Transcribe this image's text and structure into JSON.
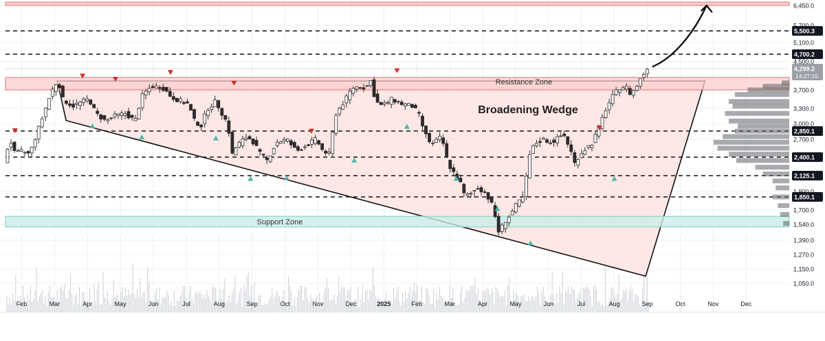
{
  "chart_data": {
    "type": "candlestick",
    "y_axis": {
      "ticks": [
        {
          "v": 6450,
          "label": "6,450.0"
        },
        {
          "v": 5700,
          "label": "5,700.0"
        },
        {
          "v": 5100,
          "label": "5,100.0"
        },
        {
          "v": 4500,
          "label": "4,500.0"
        },
        {
          "v": 3700,
          "label": "3,700.0"
        },
        {
          "v": 3300,
          "label": "3,300.0"
        },
        {
          "v": 3000,
          "label": "3,000.0"
        },
        {
          "v": 2700,
          "label": "2,700.0"
        },
        {
          "v": 1900,
          "label": "1,900.0"
        },
        {
          "v": 1700,
          "label": "1,700.0"
        },
        {
          "v": 1540,
          "label": "1,540.0"
        },
        {
          "v": 1390,
          "label": "1,390.0"
        },
        {
          "v": 1270,
          "label": "1,270.0"
        },
        {
          "v": 1150,
          "label": "1,150.0"
        },
        {
          "v": 1050,
          "label": "1,050.0"
        }
      ],
      "level_labels": [
        {
          "v": 5500.3,
          "label": "5,500.3"
        },
        {
          "v": 4700.2,
          "label": "4,700.2"
        },
        {
          "v": 2850.1,
          "label": "2,850.1"
        },
        {
          "v": 2400.1,
          "label": "2,400.1"
        },
        {
          "v": 2125.1,
          "label": "2,125.1"
        },
        {
          "v": 1850.1,
          "label": "1,850.1"
        }
      ],
      "current_price": {
        "v": 4299.2,
        "label": "4,299.2",
        "countdown": "14:27:15"
      }
    },
    "x_axis": {
      "ticks": [
        {
          "t": 0.5,
          "label": "Feb",
          "bold": false
        },
        {
          "t": 1.5,
          "label": "Mar",
          "bold": false
        },
        {
          "t": 2.5,
          "label": "Apr",
          "bold": false
        },
        {
          "t": 3.5,
          "label": "May",
          "bold": false
        },
        {
          "t": 4.5,
          "label": "Jun",
          "bold": false
        },
        {
          "t": 5.5,
          "label": "Jul",
          "bold": false
        },
        {
          "t": 6.5,
          "label": "Aug",
          "bold": false
        },
        {
          "t": 7.5,
          "label": "Sep",
          "bold": false
        },
        {
          "t": 8.5,
          "label": "Oct",
          "bold": false
        },
        {
          "t": 9.5,
          "label": "Nov",
          "bold": false
        },
        {
          "t": 10.5,
          "label": "Dec",
          "bold": false
        },
        {
          "t": 11.5,
          "label": "2025",
          "bold": true
        },
        {
          "t": 12.5,
          "label": "Feb",
          "bold": false
        },
        {
          "t": 13.5,
          "label": "Mar",
          "bold": false
        },
        {
          "t": 14.5,
          "label": "Apr",
          "bold": false
        },
        {
          "t": 15.5,
          "label": "May",
          "bold": false
        },
        {
          "t": 16.5,
          "label": "Jun",
          "bold": false
        },
        {
          "t": 17.5,
          "label": "Jul",
          "bold": false
        },
        {
          "t": 18.5,
          "label": "Aug",
          "bold": false
        },
        {
          "t": 19.5,
          "label": "Sep",
          "bold": false
        },
        {
          "t": 20.5,
          "label": "Oct",
          "bold": false
        },
        {
          "t": 21.5,
          "label": "Nov",
          "bold": false
        },
        {
          "t": 22.5,
          "label": "Dec",
          "bold": false
        }
      ]
    },
    "price_path": [
      [
        0,
        2300
      ],
      [
        0.2,
        2700
      ],
      [
        0.35,
        2450
      ],
      [
        0.55,
        2500
      ],
      [
        0.8,
        2450
      ],
      [
        1.0,
        2780
      ],
      [
        1.2,
        3150
      ],
      [
        1.45,
        3650
      ],
      [
        1.65,
        3960
      ],
      [
        1.8,
        3500
      ],
      [
        2.1,
        3350
      ],
      [
        2.4,
        3450
      ],
      [
        2.6,
        3500
      ],
      [
        2.8,
        3200
      ],
      [
        3.1,
        3050
      ],
      [
        3.4,
        3150
      ],
      [
        3.7,
        3200
      ],
      [
        4.0,
        3050
      ],
      [
        4.2,
        3550
      ],
      [
        4.5,
        3800
      ],
      [
        4.8,
        3780
      ],
      [
        5.1,
        3550
      ],
      [
        5.4,
        3450
      ],
      [
        5.6,
        3400
      ],
      [
        5.8,
        3050
      ],
      [
        6.0,
        2950
      ],
      [
        6.2,
        3300
      ],
      [
        6.45,
        3450
      ],
      [
        6.6,
        3250
      ],
      [
        6.8,
        3000
      ],
      [
        6.95,
        2450
      ],
      [
        7.1,
        2600
      ],
      [
        7.4,
        2750
      ],
      [
        7.6,
        2650
      ],
      [
        7.8,
        2450
      ],
      [
        8.0,
        2350
      ],
      [
        8.3,
        2650
      ],
      [
        8.6,
        2700
      ],
      [
        8.9,
        2500
      ],
      [
        9.2,
        2600
      ],
      [
        9.5,
        2700
      ],
      [
        9.7,
        2500
      ],
      [
        9.9,
        2450
      ],
      [
        10.1,
        3200
      ],
      [
        10.4,
        3500
      ],
      [
        10.6,
        3750
      ],
      [
        10.8,
        3800
      ],
      [
        11.0,
        3750
      ],
      [
        11.15,
        3950
      ],
      [
        11.3,
        3450
      ],
      [
        11.5,
        3350
      ],
      [
        11.8,
        3500
      ],
      [
        12.1,
        3400
      ],
      [
        12.4,
        3350
      ],
      [
        12.6,
        3200
      ],
      [
        12.8,
        2800
      ],
      [
        13.0,
        2600
      ],
      [
        13.3,
        2750
      ],
      [
        13.5,
        2300
      ],
      [
        13.7,
        2150
      ],
      [
        13.9,
        2000
      ],
      [
        14.0,
        1850
      ],
      [
        14.2,
        1880
      ],
      [
        14.4,
        1950
      ],
      [
        14.6,
        1900
      ],
      [
        14.8,
        1800
      ],
      [
        14.95,
        1600
      ],
      [
        15.05,
        1450
      ],
      [
        15.2,
        1560
      ],
      [
        15.4,
        1650
      ],
      [
        15.6,
        1770
      ],
      [
        15.8,
        1850
      ],
      [
        16.0,
        2500
      ],
      [
        16.2,
        2650
      ],
      [
        16.4,
        2700
      ],
      [
        16.6,
        2650
      ],
      [
        16.8,
        2700
      ],
      [
        17.0,
        2800
      ],
      [
        17.2,
        2550
      ],
      [
        17.35,
        2300
      ],
      [
        17.5,
        2450
      ],
      [
        17.7,
        2550
      ],
      [
        17.9,
        2650
      ],
      [
        18.1,
        2950
      ],
      [
        18.3,
        3300
      ],
      [
        18.5,
        3550
      ],
      [
        18.7,
        3750
      ],
      [
        18.9,
        3800
      ],
      [
        19.05,
        3600
      ],
      [
        19.2,
        3750
      ],
      [
        19.4,
        4100
      ],
      [
        19.55,
        4300
      ]
    ],
    "resistance_zone": {
      "label": "Resistance Zone",
      "from": 3700,
      "to": 4050
    },
    "support_zone": {
      "label": "Support Zone",
      "from": 1515,
      "to": 1630
    },
    "pattern_label": "Broadening Wedge",
    "wedge_polygon": [
      [
        1.58,
        3970
      ],
      [
        1.58,
        3950
      ],
      [
        21.25,
        3950
      ],
      [
        19.45,
        1100
      ],
      [
        1.85,
        3060
      ]
    ],
    "dashed_levels": [
      5500.3,
      4700.2,
      2850.1,
      2400.1,
      2125.1,
      1850.1
    ],
    "top_band": 6450,
    "dotted_level": 4299.2,
    "projection_arrow": [
      [
        19.65,
        4350
      ],
      [
        20.3,
        4600
      ],
      [
        20.9,
        5400
      ],
      [
        21.3,
        6450
      ]
    ],
    "highs_markers": [
      [
        0.3,
        2850
      ],
      [
        2.35,
        4080
      ],
      [
        3.35,
        3990
      ],
      [
        5.02,
        4180
      ],
      [
        6.95,
        3880
      ],
      [
        9.3,
        2840
      ],
      [
        11.9,
        4230
      ],
      [
        18.05,
        2900
      ]
    ],
    "lows_markers": [
      [
        2.65,
        2960
      ],
      [
        4.15,
        2750
      ],
      [
        6.4,
        2730
      ],
      [
        7.45,
        2090
      ],
      [
        8.55,
        2100
      ],
      [
        10.6,
        2360
      ],
      [
        12.2,
        2950
      ],
      [
        13.7,
        2090
      ],
      [
        14.95,
        1720
      ],
      [
        15.95,
        1370
      ],
      [
        18.5,
        2090
      ]
    ],
    "volume_profile": [
      {
        "price": 3900,
        "len": 0.1
      },
      {
        "price": 3800,
        "len": 0.35
      },
      {
        "price": 3700,
        "len": 0.55
      },
      {
        "price": 3600,
        "len": 0.72
      },
      {
        "price": 3450,
        "len": 0.8
      },
      {
        "price": 3350,
        "len": 0.75
      },
      {
        "price": 3200,
        "len": 0.85
      },
      {
        "price": 3050,
        "len": 0.8
      },
      {
        "price": 2950,
        "len": 0.68
      },
      {
        "price": 2850,
        "len": 0.72
      },
      {
        "price": 2750,
        "len": 0.88
      },
      {
        "price": 2650,
        "len": 1.0
      },
      {
        "price": 2550,
        "len": 0.95
      },
      {
        "price": 2450,
        "len": 0.8
      },
      {
        "price": 2350,
        "len": 0.7
      },
      {
        "price": 2250,
        "len": 0.45
      },
      {
        "price": 2150,
        "len": 0.35
      },
      {
        "price": 2050,
        "len": 0.22
      },
      {
        "price": 1950,
        "len": 0.18
      },
      {
        "price": 1850,
        "len": 0.22
      },
      {
        "price": 1750,
        "len": 0.15
      },
      {
        "price": 1650,
        "len": 0.12
      },
      {
        "price": 1550,
        "len": 0.08
      }
    ],
    "colors": {
      "up": "#26a69a",
      "down": "#ef5350",
      "candle_body": "#2b2b2b",
      "resistance_fill": "#f9cfcc",
      "resistance_stroke": "#e57373",
      "support_fill": "#c8ece8",
      "support_stroke": "#7fcfc5",
      "wedge_fill": "#fde0de",
      "grid": "#eceff1",
      "axis_text": "#131722",
      "marker_red": "#d32f2f",
      "marker_green": "#4db6ac"
    }
  }
}
